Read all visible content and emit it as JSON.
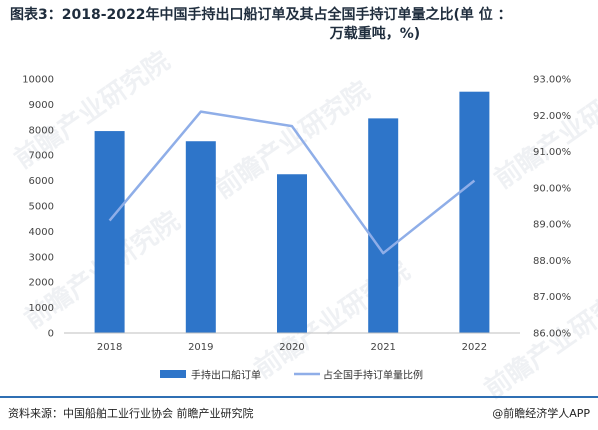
{
  "title_line1": "图表3：2018-2022年中国手持出口船订单及其占全国手持订单量之比(单 位 ：",
  "title_line2": "万载重吨，%)",
  "source_text": "资料来源：中国船舶工业行业协会 前瞻产业研究院",
  "brand_text": "@前瞻经济学人APP",
  "watermark": "前瞻产业研究院",
  "chart_data": {
    "type": "bar",
    "categories": [
      "2018",
      "2019",
      "2020",
      "2021",
      "2022"
    ],
    "series": [
      {
        "name": "手持出口船订单",
        "type": "bar",
        "axis": "left",
        "color": "#2e75c9",
        "values": [
          7950,
          7550,
          6250,
          8450,
          9500
        ]
      },
      {
        "name": "占全国手持订单量比例",
        "type": "line",
        "axis": "right",
        "color": "#8faee8",
        "values": [
          89.1,
          92.1,
          91.7,
          88.2,
          90.2
        ]
      }
    ],
    "y_left": {
      "min": 0,
      "max": 10000,
      "step": 1000,
      "ticks": [
        "0",
        "1000",
        "2000",
        "3000",
        "4000",
        "5000",
        "6000",
        "7000",
        "8000",
        "9000",
        "10000"
      ]
    },
    "y_right": {
      "min": 86,
      "max": 93,
      "step": 1,
      "ticks": [
        "86.00%",
        "87.00%",
        "88.00%",
        "89.00%",
        "90.00%",
        "91.00%",
        "92.00%",
        "93.00%"
      ]
    },
    "legend_position": "bottom-center",
    "grid": false
  }
}
